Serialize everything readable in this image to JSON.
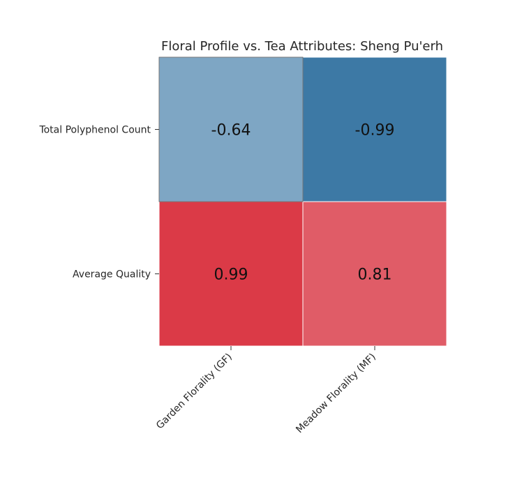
{
  "chart_data": {
    "type": "heatmap",
    "title": "Floral Profile vs. Tea Attributes: Sheng Pu'erh",
    "x_categories": [
      "Garden Florality (GF)",
      "Meadow Florality (MF)"
    ],
    "y_categories": [
      "Total Polyphenol Count",
      "Average Quality"
    ],
    "values": [
      [
        -0.64,
        -0.99
      ],
      [
        0.99,
        0.81
      ]
    ],
    "value_labels": [
      [
        "-0.64",
        "-0.99"
      ],
      [
        "0.99",
        "0.81"
      ]
    ],
    "colorscale": {
      "negative": "#3d79a5",
      "negative_light": "#7ea6c4",
      "positive": "#db3a47",
      "positive_light": "#e05c67"
    },
    "xlabel": "",
    "ylabel": "",
    "grid": false,
    "legend": "none"
  }
}
